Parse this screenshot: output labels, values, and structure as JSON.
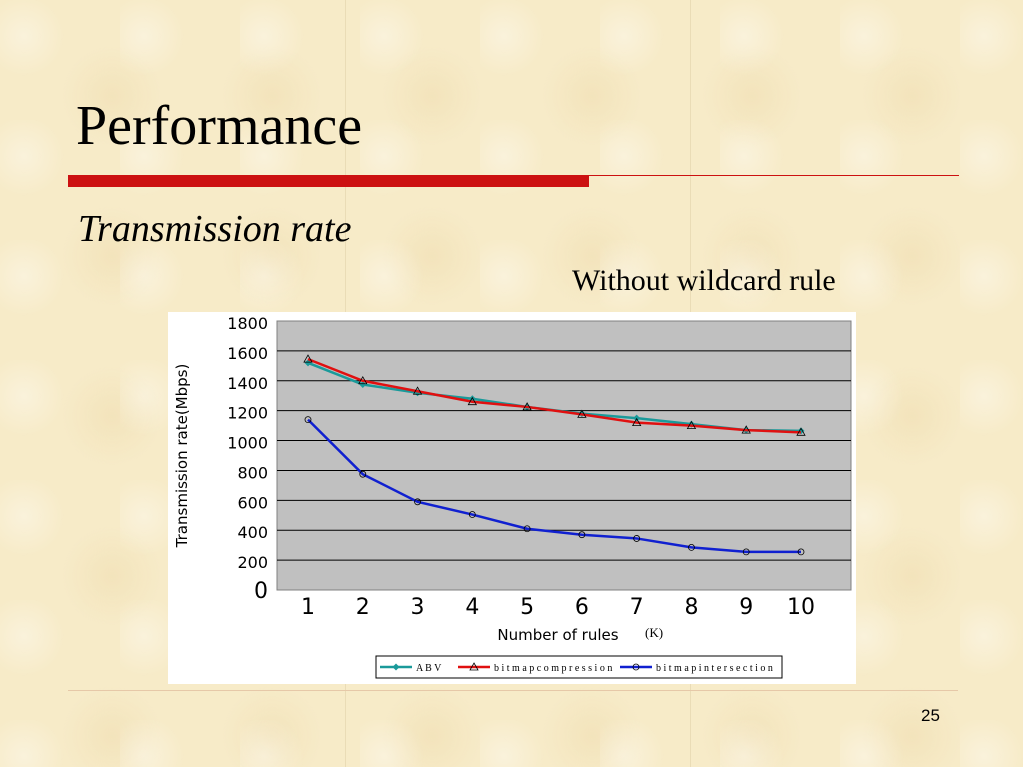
{
  "slide": {
    "title": "Performance",
    "subtitle": "Transmission rate",
    "caption": "Without wildcard rule",
    "page_number": "25"
  },
  "colors": {
    "background": "#f7ebc8",
    "accent_rule": "#cc1111",
    "plot_area": "#c0c0c0"
  },
  "chart_data": {
    "type": "line",
    "ylabel": "Transmission rate(Mbps)",
    "xlabel": "Number of rules",
    "xlabel_unit": "(K)",
    "categories": [
      "1",
      "2",
      "3",
      "4",
      "5",
      "6",
      "7",
      "8",
      "9",
      "10"
    ],
    "ylim": [
      0,
      1800
    ],
    "yticks": [
      0,
      200,
      400,
      600,
      800,
      1000,
      1200,
      1400,
      1600,
      1800
    ],
    "grid": true,
    "legend_position": "bottom",
    "series": [
      {
        "name": "A B V",
        "color": "#1a9a9a",
        "marker": "diamond",
        "values": [
          1520,
          1375,
          1320,
          1280,
          1225,
          1180,
          1150,
          1110,
          1070,
          1065
        ]
      },
      {
        "name": "b i t m a p  c o m p r e s s i o n",
        "color": "#e01010",
        "marker": "triangle",
        "values": [
          1545,
          1400,
          1330,
          1260,
          1225,
          1175,
          1120,
          1100,
          1070,
          1055
        ]
      },
      {
        "name": "b i t m a p  i n t e r s e c t i o n",
        "color": "#1020d0",
        "marker": "circle",
        "values": [
          1140,
          775,
          590,
          505,
          410,
          370,
          345,
          285,
          255,
          255
        ]
      }
    ]
  }
}
